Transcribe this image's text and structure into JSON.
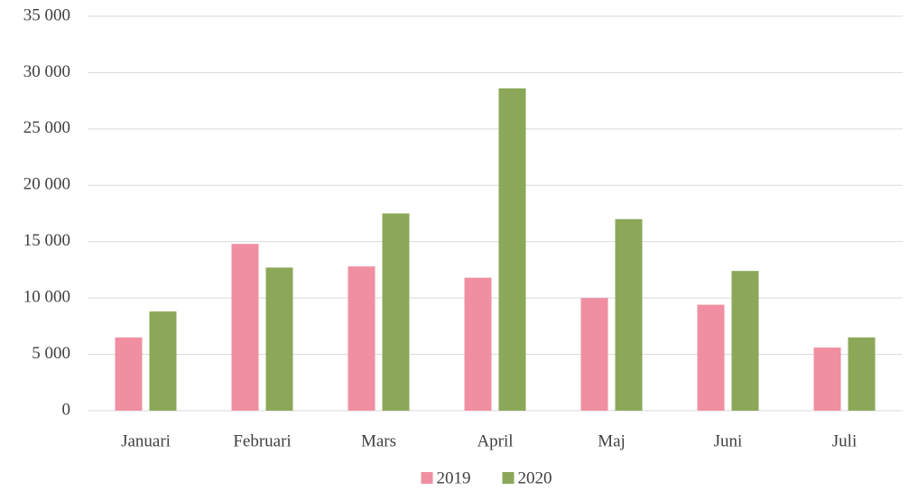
{
  "chart_data": {
    "type": "bar",
    "categories": [
      "Januari",
      "Februari",
      "Mars",
      "April",
      "Maj",
      "Juni",
      "Juli"
    ],
    "series": [
      {
        "name": "2019",
        "color": "#f08fa2",
        "values": [
          6500,
          14800,
          12800,
          11800,
          10000,
          9400,
          5600
        ]
      },
      {
        "name": "2020",
        "color": "#8ba858",
        "values": [
          8800,
          12700,
          17500,
          28600,
          17000,
          12400,
          6500
        ]
      }
    ],
    "ylim": [
      0,
      35000
    ],
    "yticks": [
      0,
      {
        "value": 5000,
        "label": "5 000"
      },
      {
        "value": 10000,
        "label": "10 000"
      },
      {
        "value": 15000,
        "label": "15 000"
      },
      {
        "value": 20000,
        "label": "20 000"
      },
      {
        "value": 25000,
        "label": "25 000"
      },
      {
        "value": 30000,
        "label": "30 000"
      },
      {
        "value": 35000,
        "label": "35 000"
      }
    ],
    "grid": true,
    "legend": "bottom"
  }
}
